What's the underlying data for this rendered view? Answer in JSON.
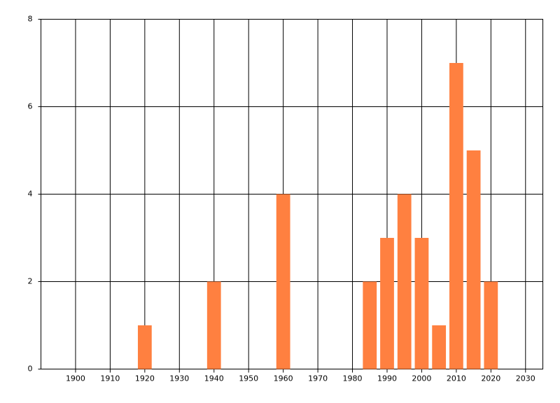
{
  "chart_data": {
    "type": "bar",
    "x": [
      1920,
      1940,
      1960,
      1985,
      1990,
      1995,
      2000,
      2005,
      2010,
      2015,
      2020
    ],
    "values": [
      1,
      2,
      4,
      2,
      3,
      4,
      3,
      1,
      7,
      5,
      2
    ],
    "color": "#ff8040",
    "xlim": [
      1890,
      2035
    ],
    "xticks": [
      1900,
      1910,
      1920,
      1930,
      1940,
      1950,
      1960,
      1970,
      1980,
      1990,
      2000,
      2010,
      2020,
      2030
    ],
    "ylim": [
      0,
      8
    ],
    "yticks": [
      0,
      2,
      4,
      6,
      8
    ],
    "grid": true
  }
}
